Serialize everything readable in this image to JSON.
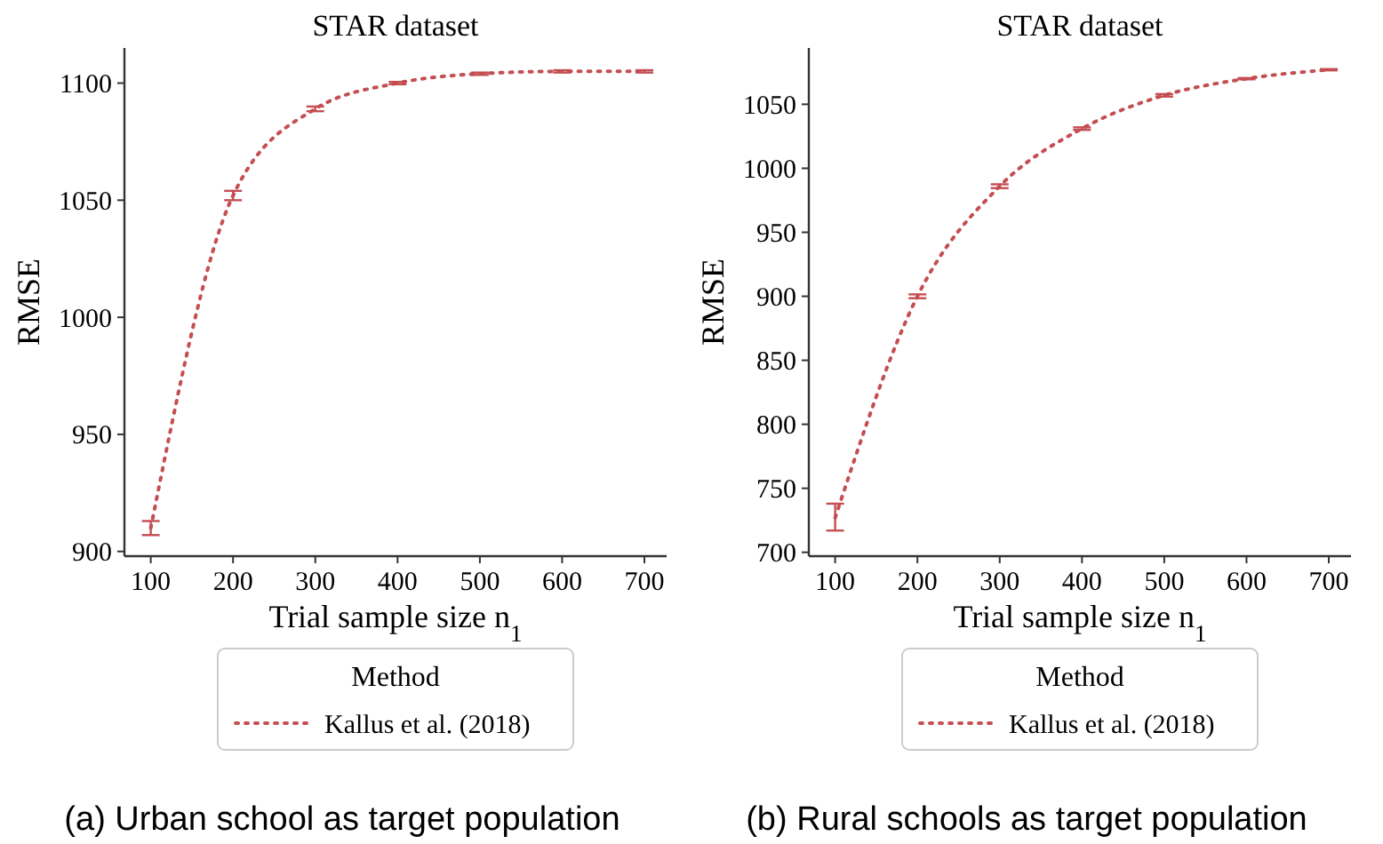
{
  "chart_data": [
    {
      "type": "line",
      "title": "STAR dataset",
      "xlabel": "Trial sample size n$_{1}$",
      "ylabel": "RMSE",
      "legend_title": "Method",
      "legend": "bottom",
      "line_style": "dotted",
      "marker": "none",
      "grid": false,
      "x": [
        100,
        200,
        300,
        400,
        500,
        600,
        700
      ],
      "xlim": [
        68,
        727
      ],
      "xticks": [
        100,
        200,
        300,
        400,
        500,
        600,
        700
      ],
      "ylim": [
        898,
        1115
      ],
      "yticks": [
        900,
        950,
        1000,
        1050,
        1100
      ],
      "series": [
        {
          "name": "Kallus et al. (2018)",
          "color": "#c44e52",
          "values": [
            910,
            1052,
            1089,
            1100,
            1104,
            1105,
            1105
          ],
          "errors": [
            3,
            2,
            1,
            0.5,
            0.5,
            0.5,
            0.5
          ]
        }
      ],
      "annotations": [
        "(a) Urban school as target population"
      ]
    },
    {
      "type": "line",
      "title": "STAR dataset",
      "xlabel": "Trial sample size n$_{1}$",
      "ylabel": "RMSE",
      "legend_title": "Method",
      "legend": "bottom",
      "line_style": "dotted",
      "marker": "none",
      "grid": false,
      "x": [
        100,
        200,
        300,
        400,
        500,
        600,
        700
      ],
      "xlim": [
        68,
        727
      ],
      "xticks": [
        100,
        200,
        300,
        400,
        500,
        600,
        700
      ],
      "ylim": [
        697,
        1094
      ],
      "yticks": [
        700,
        750,
        800,
        850,
        900,
        950,
        1000,
        1050
      ],
      "series": [
        {
          "name": "Kallus et al. (2018)",
          "color": "#c44e52",
          "values": [
            727,
            900,
            986,
            1031,
            1057,
            1070,
            1077
          ],
          "errors": [
            [
              717,
              738
            ],
            1.5,
            1.5,
            1,
            1,
            0.5,
            0.5
          ]
        }
      ],
      "annotations": [
        "(b) Rural schools as target population"
      ]
    }
  ]
}
